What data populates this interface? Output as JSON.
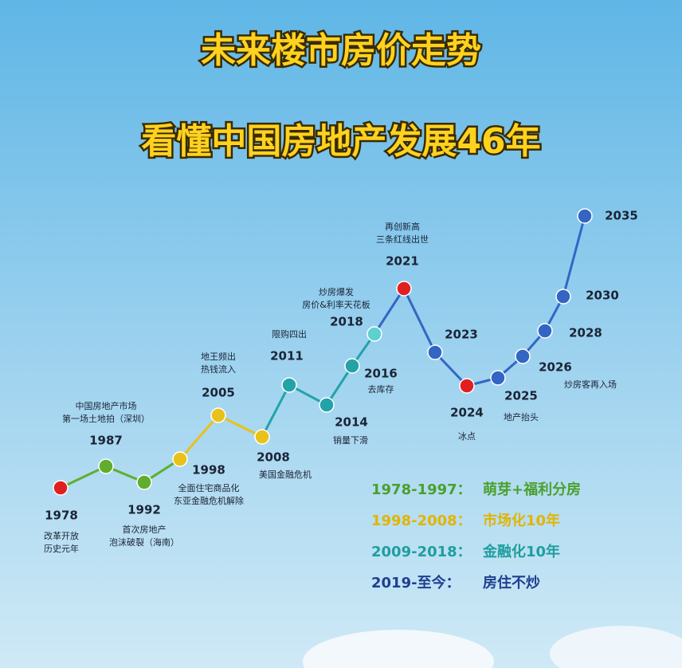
{
  "header": {
    "title": "未来楼市房价走势",
    "subtitle": "看懂中国房地产发展46年"
  },
  "nodes": [
    {
      "year": "1978",
      "notes": [
        "改革开放",
        "历史元年"
      ]
    },
    {
      "year": "1987",
      "notes": [
        "中国房地产市场",
        "第一场土地拍（深圳）"
      ]
    },
    {
      "year": "1992",
      "notes": [
        "首次房地产",
        "泡沫破裂（海南）"
      ]
    },
    {
      "year": "1998",
      "notes": [
        "全面住宅商品化",
        "东亚金融危机解除"
      ]
    },
    {
      "year": "2005",
      "notes": [
        "地王频出",
        "热钱流入"
      ]
    },
    {
      "year": "2008",
      "notes": [
        "美国金融危机"
      ]
    },
    {
      "year": "2011",
      "notes": [
        "限购四出"
      ]
    },
    {
      "year": "2014",
      "notes": [
        "销量下滑"
      ]
    },
    {
      "year": "2016",
      "notes": [
        "去库存"
      ]
    },
    {
      "year": "2018",
      "notes": [
        "炒房爆发",
        "房价&利率天花板"
      ]
    },
    {
      "year": "2021",
      "notes": [
        "再创新高",
        "三条红线出世"
      ]
    },
    {
      "year": "2023",
      "notes": []
    },
    {
      "year": "2024",
      "notes": [
        "冰点"
      ]
    },
    {
      "year": "2025",
      "notes": [
        "地产抬头"
      ]
    },
    {
      "year": "2026",
      "notes": [
        "炒房客再入场"
      ]
    },
    {
      "year": "2028",
      "notes": []
    },
    {
      "year": "2030",
      "notes": []
    },
    {
      "year": "2035",
      "notes": []
    }
  ],
  "legend": [
    {
      "period": "1978-1997：",
      "desc": "萌芽+福利分房"
    },
    {
      "period": "1998-2008：",
      "desc": "市场化10年"
    },
    {
      "period": "2009-2018：",
      "desc": "金融化10年"
    },
    {
      "period": "2019-至今：",
      "desc": "房住不炒"
    }
  ]
}
